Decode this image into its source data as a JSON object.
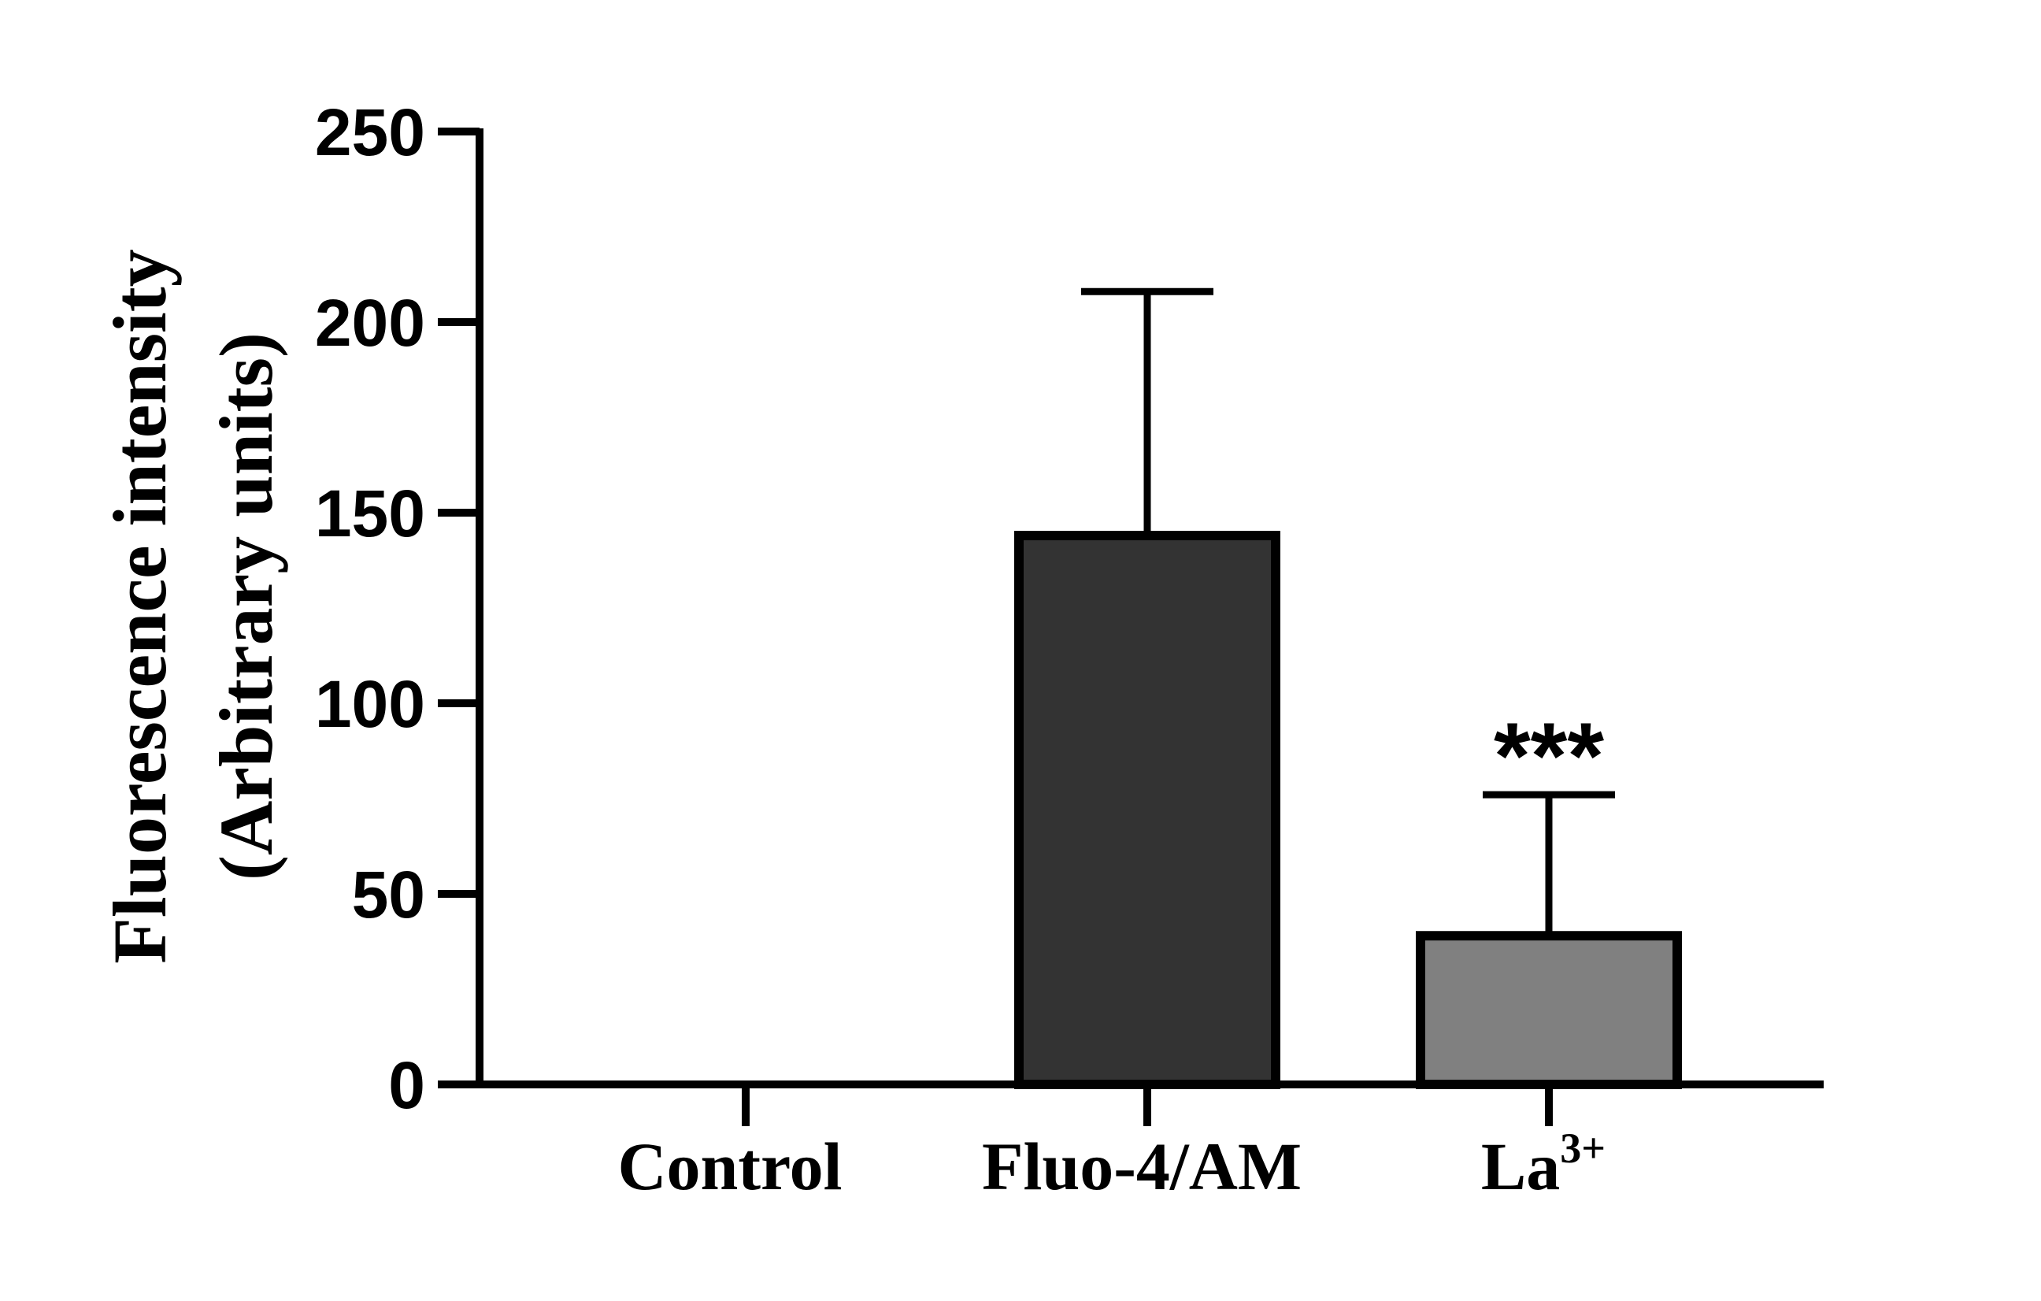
{
  "chart_data": {
    "type": "bar",
    "categories": [
      "Control",
      "Fluo-4/AM",
      "La"
    ],
    "category_superscripts": [
      "",
      "",
      "3+"
    ],
    "values": [
      0,
      144,
      39
    ],
    "error_upper": [
      0,
      208,
      76
    ],
    "bar_colors": [
      "#ffffff",
      "#333333",
      "#808080"
    ],
    "annotations": [
      "",
      "",
      "***"
    ],
    "ylabel_lines": [
      "Fluorescence intensity",
      "(Arbitrary units)"
    ],
    "xlabel": "",
    "title": "",
    "ylim": [
      0,
      250
    ],
    "yticks": [
      0,
      50,
      100,
      150,
      200,
      250
    ],
    "ytick_labels": [
      "0",
      "50",
      "100",
      "150",
      "200",
      "250"
    ],
    "grid": false,
    "legend": "none"
  }
}
